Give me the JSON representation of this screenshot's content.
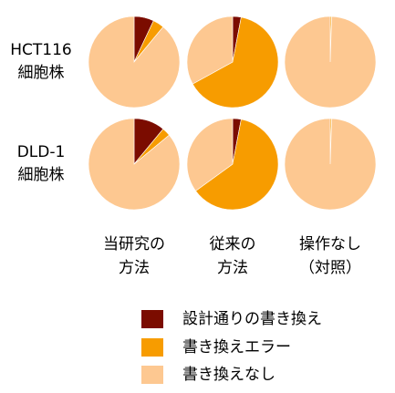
{
  "chart_data": {
    "type": "pie",
    "rows": [
      [
        "HCT116",
        "細胞株"
      ],
      [
        "DLD-1",
        "細胞株"
      ]
    ],
    "columns": [
      [
        "当研究の",
        "方法"
      ],
      [
        "従来の",
        "方法"
      ],
      [
        "操作なし",
        "（対照）"
      ]
    ],
    "legend": [
      {
        "name": "設計通りの書き換え",
        "color": "#7b0c00"
      },
      {
        "name": "書き換えエラー",
        "color": "#f79c00"
      },
      {
        "name": "書き換えなし",
        "color": "#fdc891"
      }
    ],
    "pies": [
      [
        [
          7,
          4,
          89
        ],
        [
          3,
          64,
          33
        ],
        [
          0,
          0.5,
          99.5
        ]
      ],
      [
        [
          11,
          3,
          86
        ],
        [
          3,
          62,
          35
        ],
        [
          0,
          0.5,
          99.5
        ]
      ]
    ]
  }
}
